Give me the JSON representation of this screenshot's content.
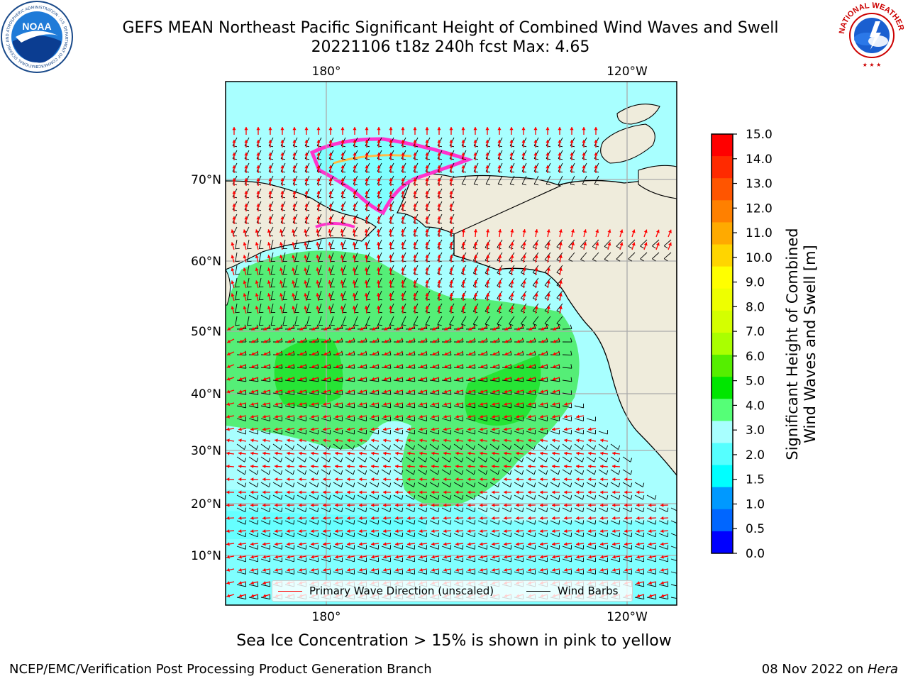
{
  "title_line1": "GEFS MEAN Northeast Pacific Significant Height of Combined Wind Waves and Swell",
  "title_line2": "20221106 t18z 240h fcst   Max: 4.65",
  "subtitle": "Sea Ice Concentration > 15% is shown in pink to yellow",
  "footer_left": "NCEP/EMC/Verification Post Processing Product Generation Branch",
  "footer_date": "08 Nov 2022 on ",
  "footer_machine": "Hera",
  "noaa_logo": {
    "text": "NOAA",
    "ring_text": "NATIONAL OCEANIC AND ATMOSPHERIC ADMINISTRATION · U.S. DEPARTMENT OF COMMERCE"
  },
  "nws_logo": {
    "ring_text": "NATIONAL WEATHER SERVICE"
  },
  "map": {
    "lon_labels_top": [
      "180°",
      "120°W"
    ],
    "lon_labels_bottom": [
      "180°",
      "120°W"
    ],
    "lat_labels": [
      "70°N",
      "60°N",
      "50°N",
      "40°N",
      "30°N",
      "20°N",
      "10°N"
    ],
    "colors": {
      "land": "#efecdc",
      "ocean_low": "#7fffff",
      "ocean_mid": "#a0ffff",
      "wave_arrow": "#ff0000",
      "wind_barb": "#000000"
    }
  },
  "legend": {
    "wave_label": "Primary Wave Direction (unscaled)",
    "wind_label": "Wind Barbs",
    "wave_color": "#ff0000",
    "wind_color": "#000000"
  },
  "colorbar": {
    "title_line1": "Significant Height of Combined",
    "title_line2": "Wind Waves and Swell [m]",
    "ticks": [
      "15.0",
      "14.0",
      "13.0",
      "12.0",
      "11.0",
      "10.0",
      "9.0",
      "8.0",
      "7.0",
      "6.0",
      "5.0",
      "4.0",
      "3.0",
      "2.0",
      "1.5",
      "1.0",
      "0.5",
      "0.0"
    ],
    "colors_top_to_bottom": [
      "#ff0000",
      "#ff2a00",
      "#ff5500",
      "#ff8000",
      "#ffaa00",
      "#ffd500",
      "#ffff00",
      "#eeff00",
      "#d4ff00",
      "#aaff00",
      "#55ee00",
      "#00e600",
      "#55ff77",
      "#a8ffff",
      "#55ffff",
      "#00ffff",
      "#0099ff",
      "#0066ff",
      "#0000ff"
    ]
  }
}
